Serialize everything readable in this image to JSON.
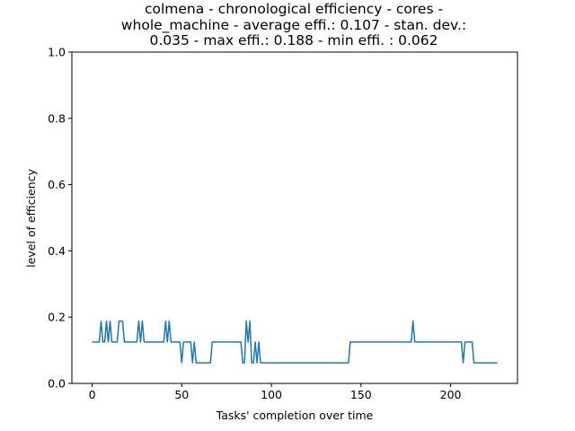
{
  "chart_data": {
    "type": "line",
    "title_lines": [
      "colmena - chronological efficiency - cores -",
      "whole_machine - average effi.: 0.107 - stan. dev.:",
      "0.035 - max effi.: 0.188 - min effi. : 0.062"
    ],
    "xlabel": "Tasks' completion over time",
    "ylabel": "level of efficiency",
    "xlim": [
      -11.3,
      237.3
    ],
    "ylim": [
      0.0,
      1.0
    ],
    "x_ticks": [
      0,
      50,
      100,
      150,
      200
    ],
    "x_tick_labels": [
      "0",
      "50",
      "100",
      "150",
      "200"
    ],
    "y_ticks": [
      0.0,
      0.2,
      0.4,
      0.6,
      0.8,
      1.0
    ],
    "y_tick_labels": [
      "0.0",
      "0.2",
      "0.4",
      "0.6",
      "0.8",
      "1.0"
    ],
    "grid": false,
    "series": [
      {
        "color": "#1f77b4",
        "points": [
          [
            0,
            0.125
          ],
          [
            4,
            0.125
          ],
          [
            5,
            0.188
          ],
          [
            6,
            0.125
          ],
          [
            7,
            0.125
          ],
          [
            8,
            0.188
          ],
          [
            9,
            0.125
          ],
          [
            10,
            0.188
          ],
          [
            11,
            0.125
          ],
          [
            14,
            0.125
          ],
          [
            15,
            0.188
          ],
          [
            17,
            0.188
          ],
          [
            18,
            0.125
          ],
          [
            25,
            0.125
          ],
          [
            26,
            0.188
          ],
          [
            27,
            0.125
          ],
          [
            28,
            0.188
          ],
          [
            29,
            0.125
          ],
          [
            40,
            0.125
          ],
          [
            41,
            0.188
          ],
          [
            42,
            0.125
          ],
          [
            43,
            0.188
          ],
          [
            44,
            0.125
          ],
          [
            49,
            0.125
          ],
          [
            50,
            0.062
          ],
          [
            51,
            0.125
          ],
          [
            55,
            0.125
          ],
          [
            56,
            0.062
          ],
          [
            57,
            0.125
          ],
          [
            58,
            0.062
          ],
          [
            66,
            0.062
          ],
          [
            67,
            0.125
          ],
          [
            83,
            0.125
          ],
          [
            84,
            0.062
          ],
          [
            85,
            0.062
          ],
          [
            86,
            0.188
          ],
          [
            87,
            0.125
          ],
          [
            88,
            0.188
          ],
          [
            89,
            0.062
          ],
          [
            90,
            0.062
          ],
          [
            91,
            0.125
          ],
          [
            92,
            0.062
          ],
          [
            93,
            0.125
          ],
          [
            94,
            0.062
          ],
          [
            143,
            0.062
          ],
          [
            144,
            0.125
          ],
          [
            178,
            0.125
          ],
          [
            179,
            0.188
          ],
          [
            180,
            0.125
          ],
          [
            206,
            0.125
          ],
          [
            207,
            0.062
          ],
          [
            208,
            0.125
          ],
          [
            212,
            0.125
          ],
          [
            213,
            0.062
          ],
          [
            226,
            0.062
          ]
        ]
      }
    ]
  }
}
